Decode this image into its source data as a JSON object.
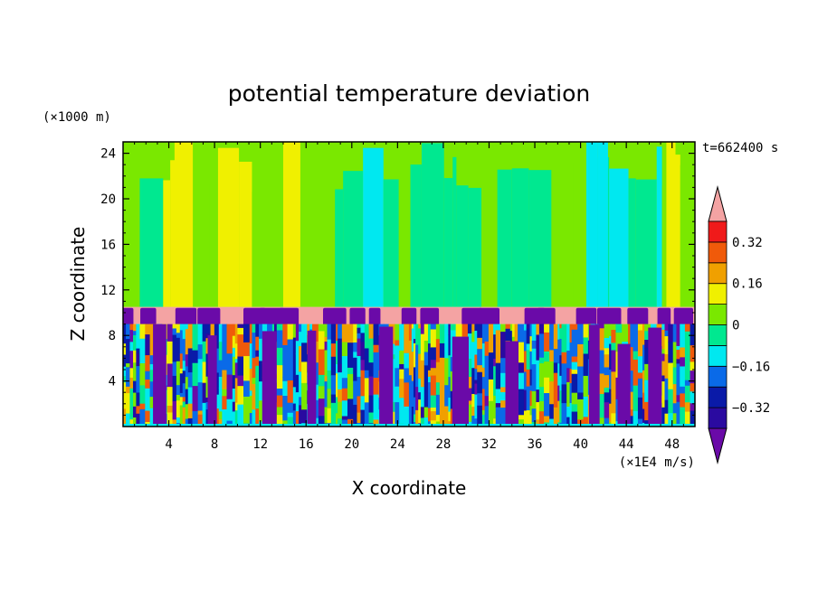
{
  "chart_data": {
    "type": "heatmap",
    "title": "potential temperature deviation",
    "xlabel": "X coordinate",
    "ylabel": "Z coordinate",
    "x_unit": "(×1E4 m/s)",
    "y_unit": "(×1000 m)",
    "time_label": "t=662400 s",
    "xlim": [
      0,
      50
    ],
    "ylim": [
      0,
      25
    ],
    "xticks": [
      4,
      8,
      12,
      16,
      20,
      24,
      28,
      32,
      36,
      40,
      44,
      48
    ],
    "yticks": [
      4,
      8,
      12,
      16,
      20,
      24
    ],
    "colorbar": {
      "levels": [
        -0.4,
        -0.32,
        -0.24,
        -0.16,
        -0.08,
        0,
        0.08,
        0.16,
        0.24,
        0.32,
        0.4
      ],
      "tick_labels": [
        "0.32",
        "0.16",
        "0",
        "−0.16",
        "−0.32"
      ],
      "tick_values": [
        0.32,
        0.16,
        0,
        -0.16,
        -0.32
      ],
      "colors": [
        "#6a0aa8",
        "#2a0aa0",
        "#0a1aa8",
        "#0a6ae8",
        "#00e8f0",
        "#00e890",
        "#7ae800",
        "#f0f000",
        "#f0a000",
        "#f05a0a",
        "#f01a1a",
        "#f4a3a3"
      ],
      "extend": "both"
    },
    "bands": [
      {
        "layer": "upper",
        "z_range": [
          10.5,
          25
        ],
        "dominant": "green"
      },
      {
        "layer": "tropopause",
        "z_range": [
          9,
          10.5
        ],
        "dominant": "pink"
      },
      {
        "layer": "lower",
        "z_range": [
          0,
          9
        ],
        "dominant": "mixed"
      }
    ]
  }
}
